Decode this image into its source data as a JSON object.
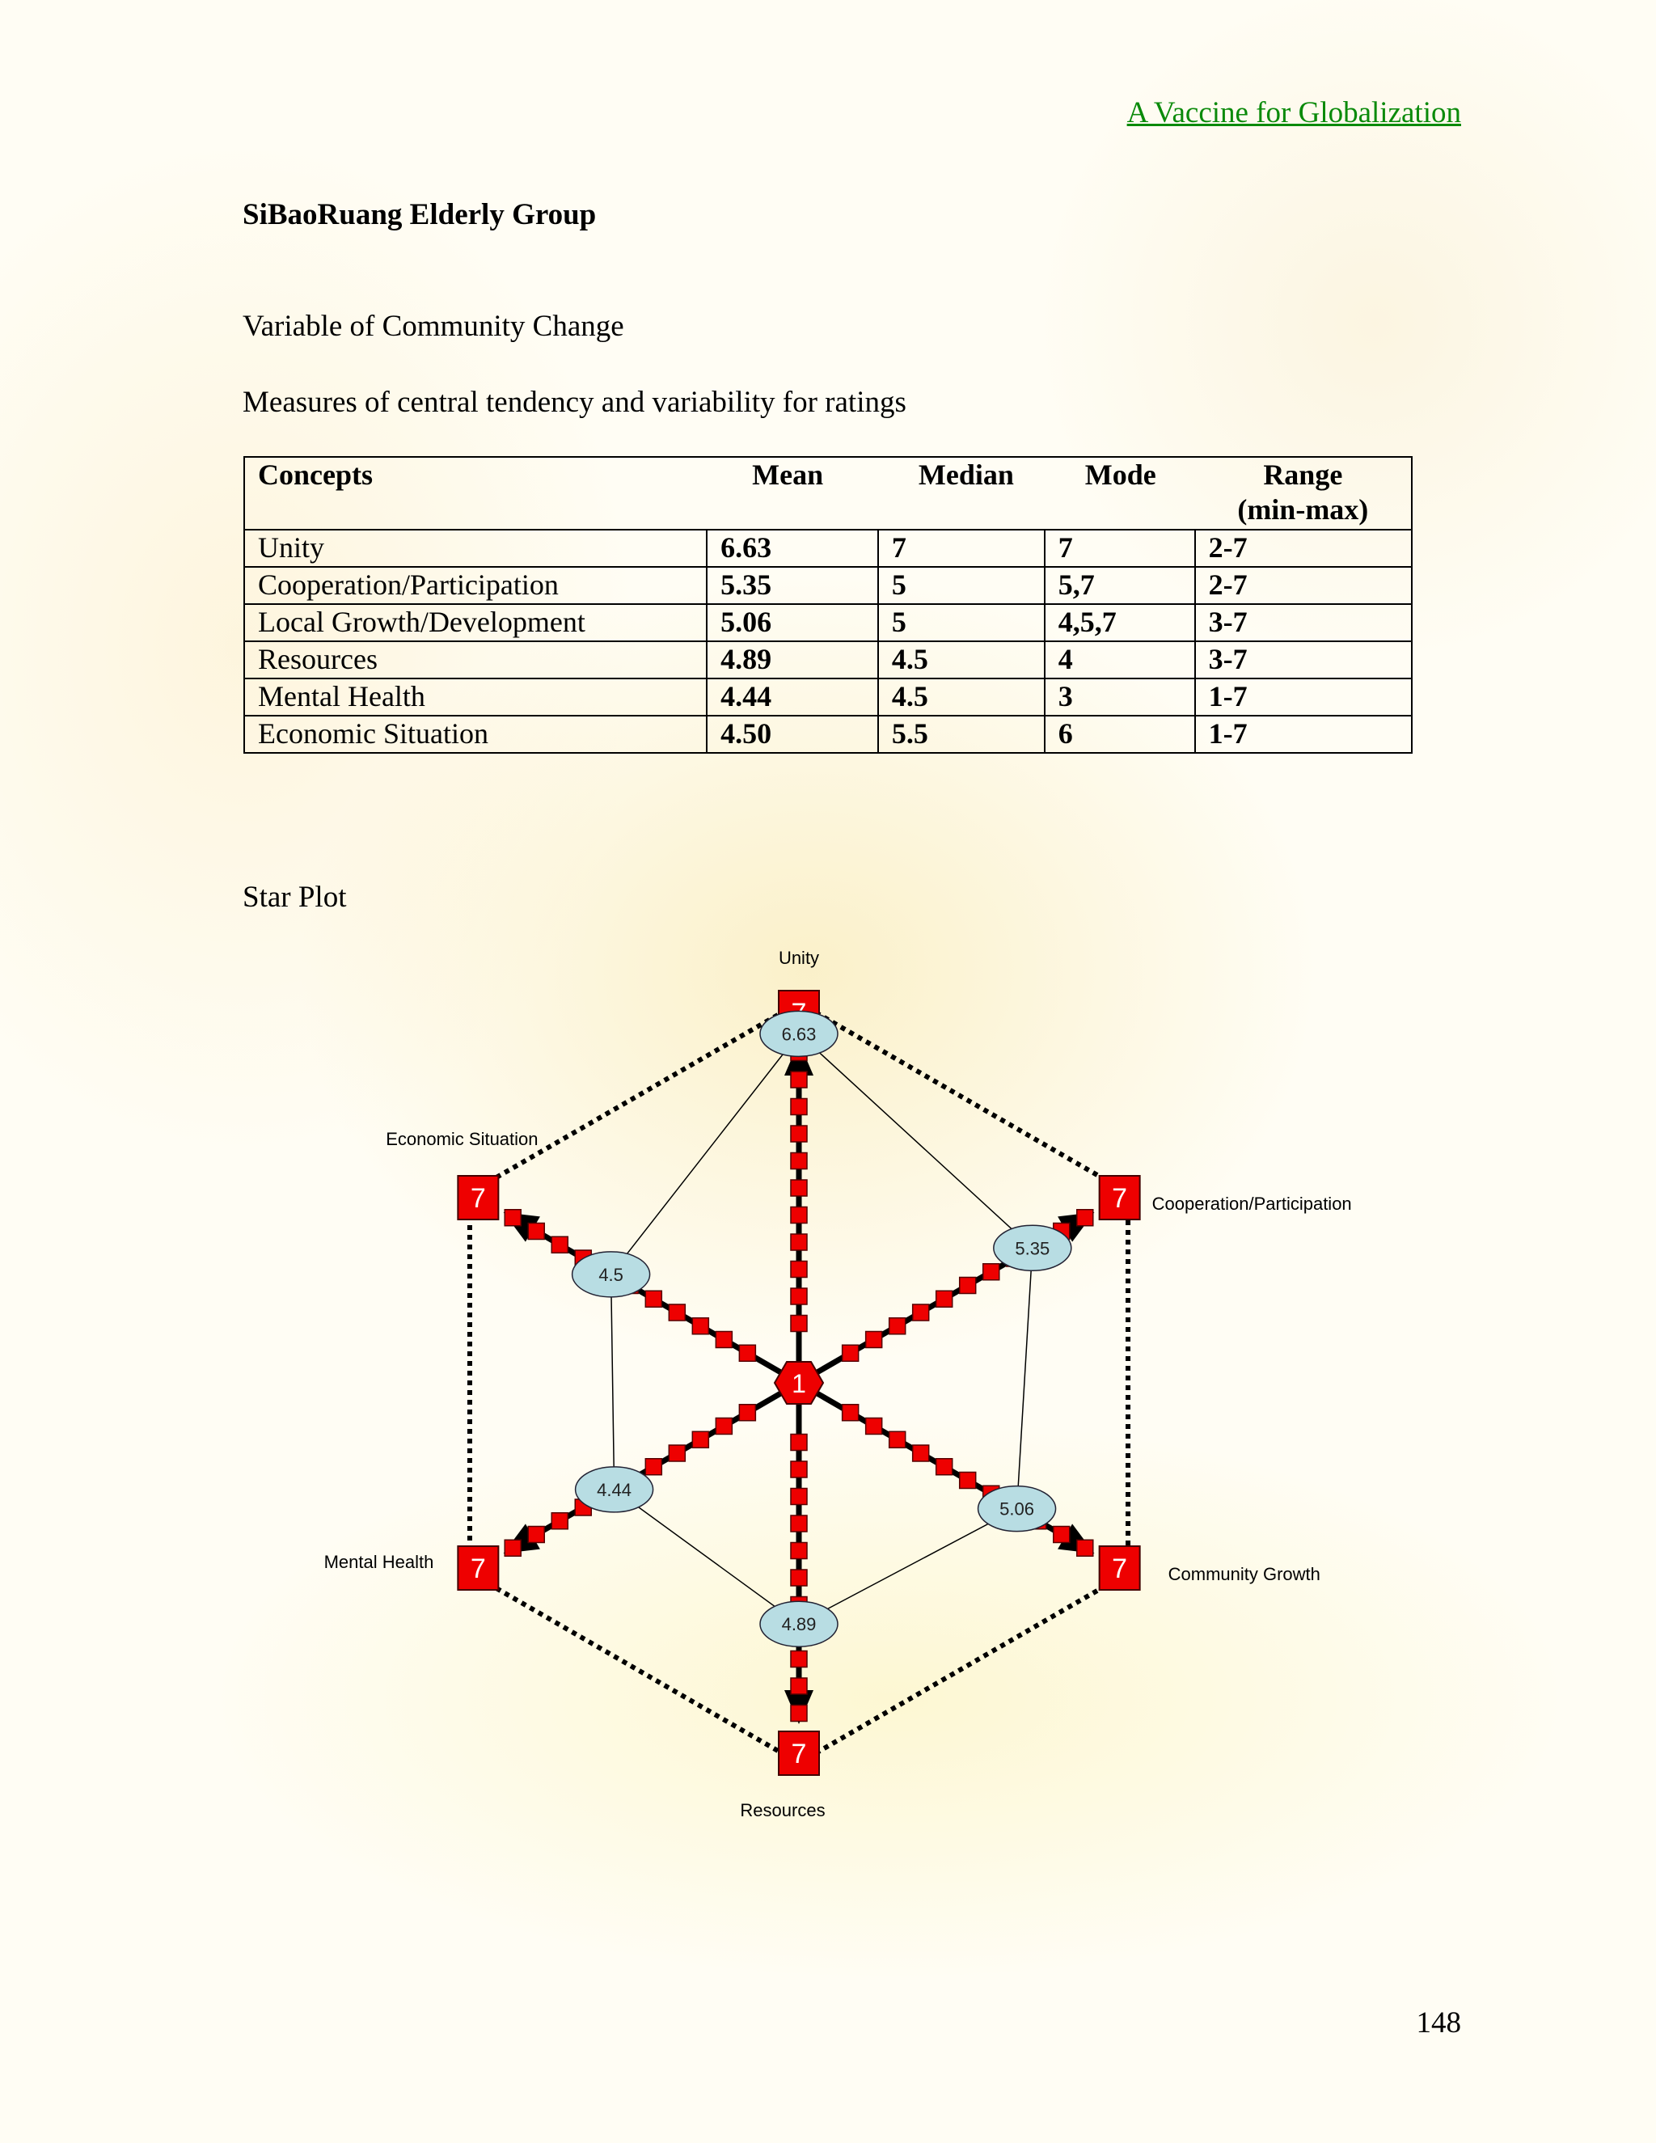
{
  "header": {
    "title": "A Vaccine for Globalization"
  },
  "group_title": "SiBaoRuang Elderly Group",
  "variable_heading": "Variable of Community Change",
  "measures_heading": "Measures of central tendency and variability for ratings",
  "table": {
    "columns": [
      "Concepts",
      "Mean",
      "Median",
      "Mode",
      "Range",
      "(min-max)"
    ],
    "rows": [
      {
        "concept": "Unity",
        "mean": "6.63",
        "median": "7",
        "mode": "7",
        "range": "2-7"
      },
      {
        "concept": "Cooperation/Participation",
        "mean": "5.35",
        "median": "5",
        "mode": "5,7",
        "range": "2-7"
      },
      {
        "concept": "Local Growth/Development",
        "mean": "5.06",
        "median": "5",
        "mode": "4,5,7",
        "range": "3-7"
      },
      {
        "concept": "Resources",
        "mean": "4.89",
        "median": "4.5",
        "mode": "4",
        "range": "3-7"
      },
      {
        "concept": "Mental Health",
        "mean": "4.44",
        "median": "4.5",
        "mode": "3",
        "range": "1-7"
      },
      {
        "concept": "Economic Situation",
        "mean": "4.50",
        "median": "5.5",
        "mode": "6",
        "range": "1-7"
      }
    ]
  },
  "star_plot_heading": "Star Plot",
  "chart_data": {
    "type": "radar",
    "center_label": "1",
    "max_label": "7",
    "scale": {
      "min": 1,
      "max": 7
    },
    "axes": [
      {
        "label": "Unity",
        "value": 6.63,
        "value_label": "6.63"
      },
      {
        "label": "Cooperation/Participation",
        "value": 5.35,
        "value_label": "5.35"
      },
      {
        "label": "Community Growth",
        "value": 5.06,
        "value_label": "5.06"
      },
      {
        "label": "Resources",
        "value": 4.89,
        "value_label": "4.89"
      },
      {
        "label": "Mental Health",
        "value": 4.44,
        "value_label": "4.44"
      },
      {
        "label": "Economic Situation",
        "value": 4.5,
        "value_label": "4.5"
      }
    ],
    "colors": {
      "marker": "#ee0000",
      "value_bubble": "#b8dde3",
      "line": "#000000"
    }
  },
  "page_number": "148"
}
